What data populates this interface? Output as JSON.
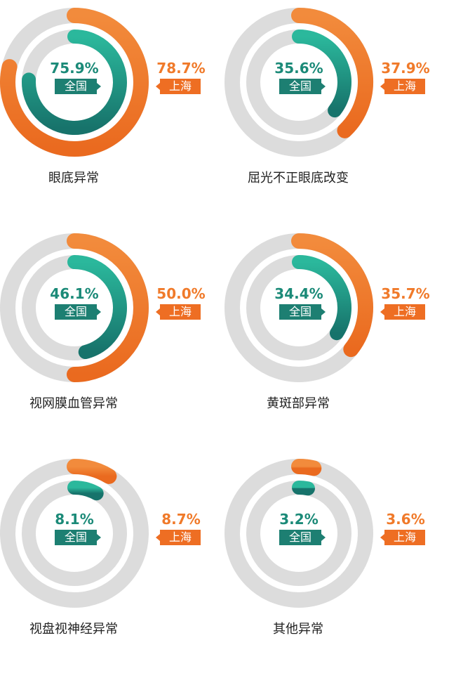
{
  "chart_data": [
    {
      "type": "pie",
      "category": "眼底异常",
      "series": [
        {
          "name": "全国",
          "value": 75.9,
          "label": "75.9%"
        },
        {
          "name": "上海",
          "value": 78.7,
          "label": "78.7%"
        }
      ]
    },
    {
      "type": "pie",
      "category": "屈光不正眼底改变",
      "series": [
        {
          "name": "全国",
          "value": 35.6,
          "label": "35.6%"
        },
        {
          "name": "上海",
          "value": 37.9,
          "label": "37.9%"
        }
      ]
    },
    {
      "type": "pie",
      "category": "视网膜血管异常",
      "series": [
        {
          "name": "全国",
          "value": 46.1,
          "label": "46.1%"
        },
        {
          "name": "上海",
          "value": 50.0,
          "label": "50.0%"
        }
      ]
    },
    {
      "type": "pie",
      "category": "黄斑部异常",
      "series": [
        {
          "name": "全国",
          "value": 34.4,
          "label": "34.4%"
        },
        {
          "name": "上海",
          "value": 35.7,
          "label": "35.7%"
        }
      ]
    },
    {
      "type": "pie",
      "category": "视盘视神经异常",
      "series": [
        {
          "name": "全国",
          "value": 8.1,
          "label": "8.1%"
        },
        {
          "name": "上海",
          "value": 8.7,
          "label": "8.7%"
        }
      ]
    },
    {
      "type": "pie",
      "category": "其他异常",
      "series": [
        {
          "name": "全国",
          "value": 3.2,
          "label": "3.2%"
        },
        {
          "name": "上海",
          "value": 3.6,
          "label": "3.6%"
        }
      ]
    }
  ],
  "colors": {
    "track": "#dcdcdc",
    "national_start": "#2bb89c",
    "national_end": "#17736b",
    "shanghai_start": "#f28b3c",
    "shanghai_end": "#ea6a1f",
    "national_tag": "#1d7f72",
    "shanghai_tag": "#ee6e23"
  }
}
